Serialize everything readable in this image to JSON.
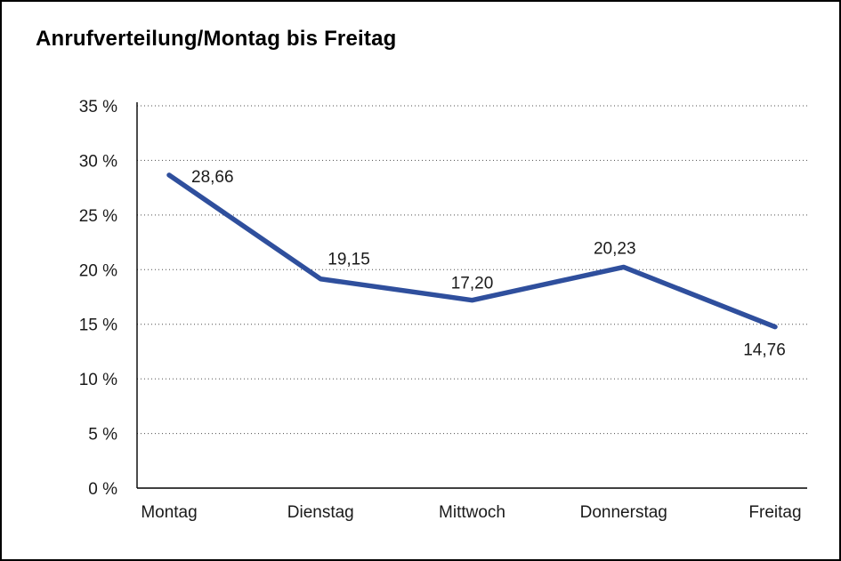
{
  "page": {
    "background": "#ffffff",
    "border_color": "#000000"
  },
  "chart_data": {
    "type": "line",
    "title": "Anrufverteilung/Montag bis Freitag",
    "categories": [
      "Montag",
      "Dienstag",
      "Mittwoch",
      "Donnerstag",
      "Freitag"
    ],
    "values": [
      28.66,
      19.15,
      17.2,
      20.23,
      14.76
    ],
    "value_labels": [
      "28,66",
      "19,15",
      "17,20",
      "20,23",
      "14,76"
    ],
    "xlabel": "",
    "ylabel": "",
    "ylim": [
      0,
      35
    ],
    "ytick_step": 5,
    "ytick_labels": [
      "0 %",
      "5 %",
      "10 %",
      "15 %",
      "20 %",
      "25 %",
      "30 %",
      "35 %"
    ],
    "grid": "horizontal-dotted",
    "legend": "none",
    "series_color": "#2f4f9d",
    "axis_color": "#000000",
    "grid_color": "#4d4d4d",
    "label_color": "#1a1a1a"
  }
}
